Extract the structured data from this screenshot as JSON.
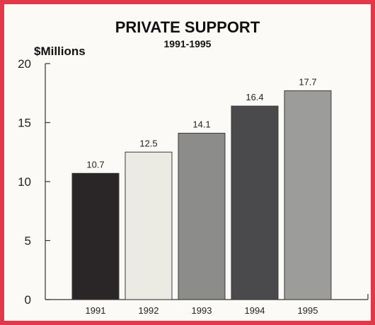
{
  "chart_data": {
    "type": "bar",
    "title": "PRIVATE SUPPORT",
    "subtitle": "1991-1995",
    "ylabel": "$Millions",
    "xlabel": "",
    "categories": [
      "1991",
      "1992",
      "1993",
      "1994",
      "1995"
    ],
    "values": [
      10.7,
      12.5,
      14.1,
      16.4,
      17.7
    ],
    "data_labels": [
      "10.7",
      "12.5",
      "14.1",
      "16.4",
      "17.7"
    ],
    "ylim": [
      0,
      20
    ],
    "yticks": [
      0,
      5,
      10,
      15,
      20
    ],
    "bar_colors": [
      "#2a2628",
      "#ecebe3",
      "#8c8c8a",
      "#4a4a4c",
      "#9c9c9a"
    ],
    "grid": false,
    "legend": "none"
  },
  "colors": {
    "frame_border": "#e03a4a",
    "background": "#fbfaf7",
    "axis": "#333333"
  }
}
